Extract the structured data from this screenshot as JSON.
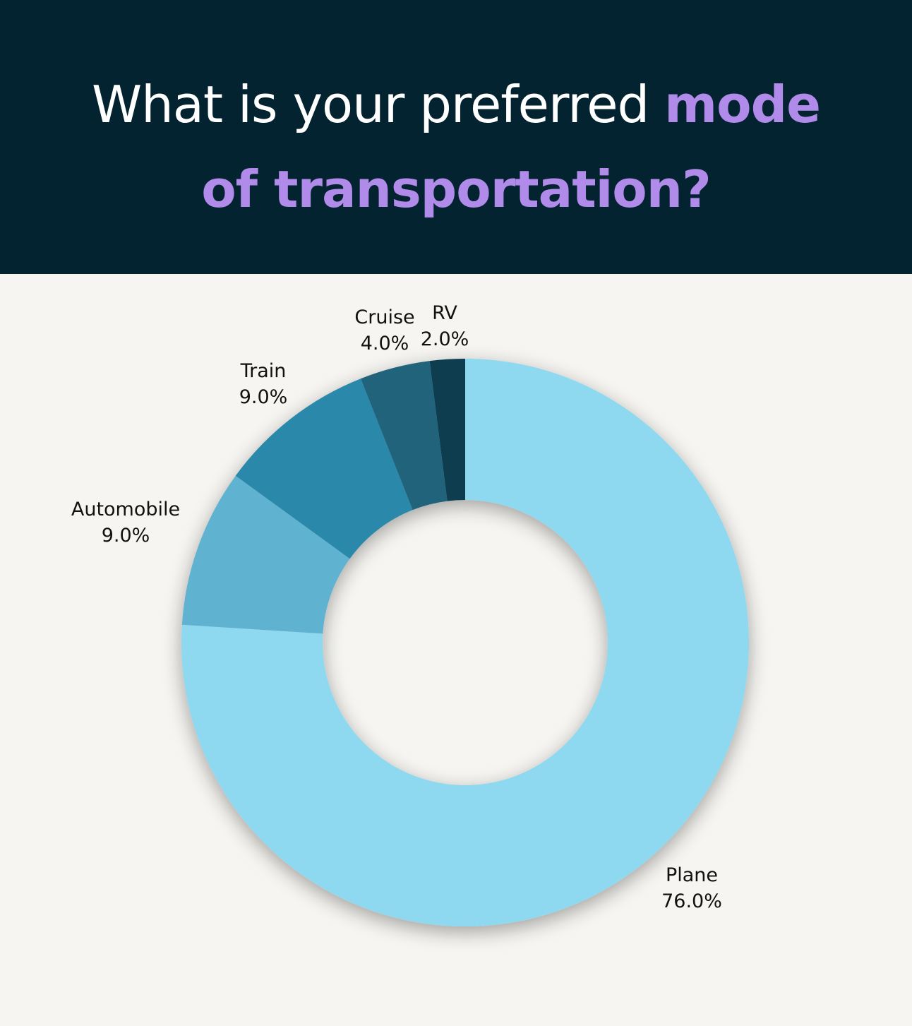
{
  "header": {
    "title_plain": "What is your preferred",
    "title_accent_1": "mode",
    "title_accent_2": "of transportation?"
  },
  "chart_data": {
    "type": "pie",
    "style": "donut",
    "title": "What is your preferred mode of transportation?",
    "start": "12 o'clock",
    "direction": "clockwise",
    "categories": [
      "Plane",
      "Automobile",
      "Train",
      "Cruise",
      "RV"
    ],
    "values": [
      76.0,
      9.0,
      9.0,
      4.0,
      2.0
    ],
    "value_labels": [
      "76.0%",
      "9.0%",
      "9.0%",
      "4.0%",
      "2.0%"
    ],
    "colors": [
      "#8ed8f0",
      "#60b3d0",
      "#2a88aa",
      "#22647c",
      "#093c50"
    ],
    "background": "#f6f5f1",
    "header_background": "#042330",
    "accent_color": "#b18be9"
  }
}
